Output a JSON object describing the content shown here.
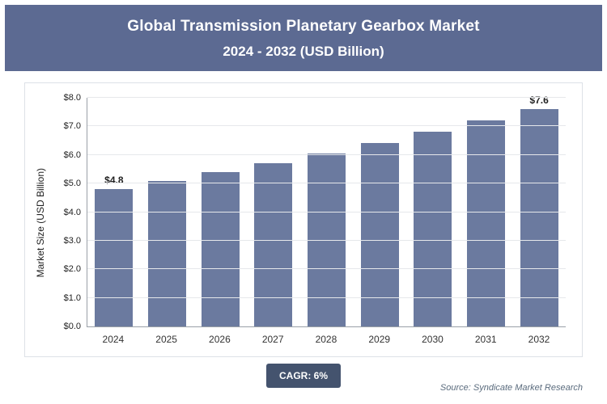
{
  "header": {
    "title": "Global Transmission Planetary Gearbox Market",
    "subtitle": "2024 - 2032 (USD Billion)"
  },
  "chart_data": {
    "type": "bar",
    "title": "Global Transmission Planetary Gearbox Market 2024 - 2032 (USD Billion)",
    "categories": [
      "2024",
      "2025",
      "2026",
      "2027",
      "2028",
      "2029",
      "2030",
      "2031",
      "2032"
    ],
    "values": [
      4.8,
      5.09,
      5.39,
      5.72,
      6.06,
      6.42,
      6.81,
      7.22,
      7.6
    ],
    "bar_labels": [
      "$4.8",
      "",
      "",
      "",
      "",
      "",
      "",
      "",
      "$7.6"
    ],
    "xlabel": "",
    "ylabel": "Market Size (USD Billion)",
    "ylim": [
      0,
      8
    ],
    "ytick_step": 1,
    "ytick_labels": [
      "$0.0",
      "$1.0",
      "$2.0",
      "$3.0",
      "$4.0",
      "$5.0",
      "$6.0",
      "$7.0",
      "$8.0"
    ],
    "grid": true,
    "legend": false,
    "bar_color": "#6b7a9f"
  },
  "footer": {
    "cagr_label": "CAGR: 6%",
    "source": "Source: Syndicate Market Research"
  }
}
